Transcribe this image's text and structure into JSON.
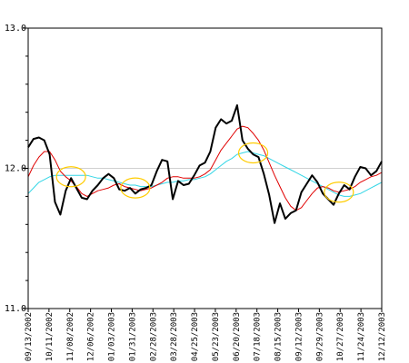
{
  "colors": {
    "background": "#ffffff",
    "axis": "#000000",
    "grid": "#d0d0d0",
    "price": "#000000",
    "short_ma": "#e00000",
    "long_ma": "#33d6e6",
    "crossover_marker": "#ffcc00"
  },
  "chart_data": {
    "type": "line",
    "title": "",
    "xlabel": "",
    "ylabel": "",
    "ylim": [
      11.0,
      13.0
    ],
    "y_ticks": [
      "11.0",
      "12.0",
      "13.0"
    ],
    "grid": "horizontal",
    "x_tick_labels": [
      "09/13/2002",
      "10/11/2002",
      "11/08/2002",
      "12/06/2002",
      "01/03/2003",
      "01/31/2003",
      "02/28/2003",
      "03/28/2003",
      "04/25/2003",
      "05/23/2003",
      "06/20/2003",
      "07/18/2003",
      "08/15/2003",
      "09/12/2003",
      "09/29/2003",
      "10/27/2003",
      "11/24/2003",
      "12/12/2003"
    ],
    "series": [
      {
        "role": "price",
        "values": [
          12.15,
          12.21,
          12.22,
          12.2,
          12.1,
          11.76,
          11.67,
          11.84,
          11.93,
          11.86,
          11.79,
          11.78,
          11.84,
          11.88,
          11.93,
          11.96,
          11.93,
          11.85,
          11.84,
          11.86,
          11.82,
          11.85,
          11.86,
          11.88,
          11.98,
          12.06,
          12.05,
          11.78,
          11.91,
          11.88,
          11.89,
          11.95,
          12.02,
          12.04,
          12.12,
          12.29,
          12.35,
          12.32,
          12.34,
          12.45,
          12.2,
          12.14,
          12.1,
          12.08,
          11.96,
          11.81,
          11.61,
          11.75,
          11.64,
          11.68,
          11.7,
          11.83,
          11.89,
          11.95,
          11.9,
          11.82,
          11.78,
          11.74,
          11.82,
          11.88,
          11.85,
          11.94,
          12.01,
          12.0,
          11.95,
          11.98,
          12.05
        ]
      },
      {
        "role": "short_ma",
        "values": [
          11.94,
          12.02,
          12.08,
          12.12,
          12.12,
          12.06,
          11.98,
          11.94,
          11.91,
          11.87,
          11.82,
          11.8,
          11.82,
          11.84,
          11.85,
          11.86,
          11.88,
          11.89,
          11.87,
          11.86,
          11.85,
          11.84,
          11.85,
          11.86,
          11.88,
          11.9,
          11.93,
          11.94,
          11.94,
          11.93,
          11.93,
          11.93,
          11.94,
          11.96,
          11.99,
          12.06,
          12.13,
          12.18,
          12.23,
          12.28,
          12.3,
          12.29,
          12.25,
          12.2,
          12.13,
          12.04,
          11.95,
          11.87,
          11.79,
          11.73,
          11.7,
          11.72,
          11.77,
          11.82,
          11.86,
          11.87,
          11.86,
          11.84,
          11.83,
          11.84,
          11.85,
          11.87,
          11.9,
          11.92,
          11.94,
          11.95,
          11.97
        ]
      },
      {
        "role": "long_ma",
        "values": [
          11.82,
          11.86,
          11.9,
          11.92,
          11.94,
          11.95,
          11.95,
          11.95,
          11.95,
          11.95,
          11.95,
          11.95,
          11.94,
          11.93,
          11.93,
          11.92,
          11.91,
          11.9,
          11.89,
          11.88,
          11.88,
          11.87,
          11.87,
          11.87,
          11.88,
          11.89,
          11.9,
          11.9,
          11.91,
          11.91,
          11.92,
          11.92,
          11.93,
          11.94,
          11.96,
          11.99,
          12.02,
          12.05,
          12.07,
          12.1,
          12.11,
          12.12,
          12.11,
          12.1,
          12.09,
          12.07,
          12.05,
          12.03,
          12.01,
          11.99,
          11.97,
          11.95,
          11.93,
          11.91,
          11.89,
          11.87,
          11.85,
          11.83,
          11.81,
          11.8,
          11.8,
          11.81,
          11.82,
          11.84,
          11.86,
          11.88,
          11.9
        ]
      }
    ],
    "crossover_markers": [
      {
        "index": 8,
        "value": 11.94
      },
      {
        "index": 20,
        "value": 11.86
      },
      {
        "index": 42,
        "value": 12.11
      },
      {
        "index": 58,
        "value": 11.83
      }
    ]
  }
}
